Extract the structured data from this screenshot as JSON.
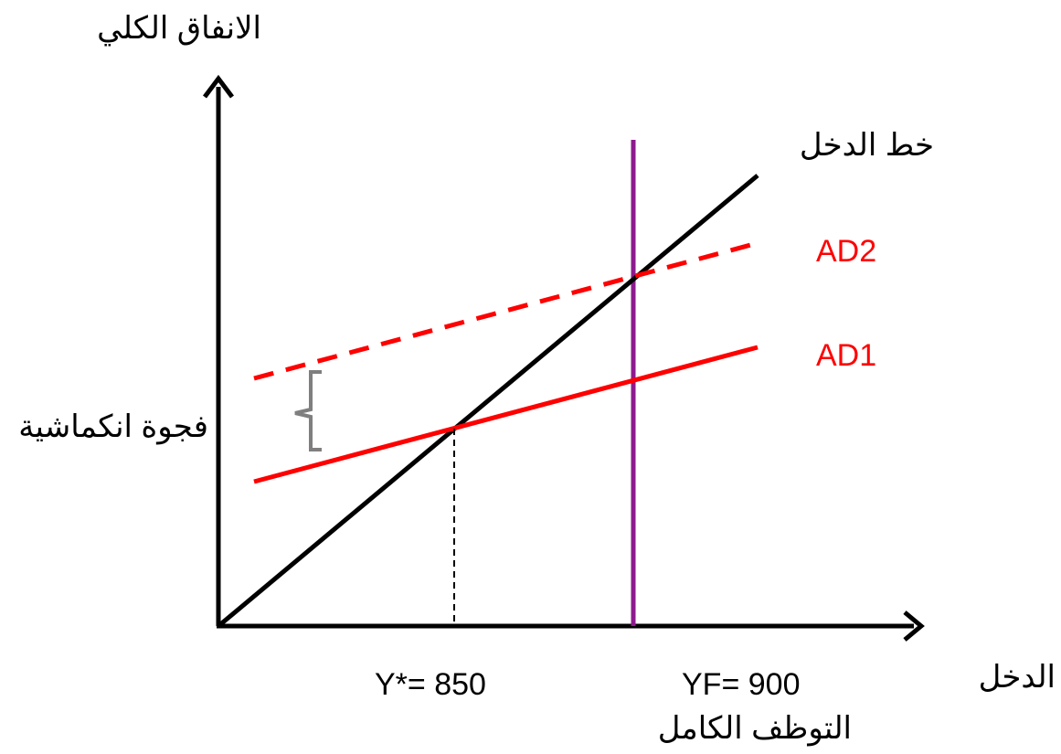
{
  "labels": {
    "y_axis": "الانفاق الكلي",
    "x_axis": "الدخل",
    "income_line": "خط الدخل",
    "ad2": "AD2",
    "ad1": "AD1",
    "gap": "فجوة انكماشية",
    "equilibrium": "Y*= 850",
    "full_employment": "YF= 900",
    "full_employment_caption": "التوظف الكامل"
  },
  "colors": {
    "axes": "#000000",
    "income_line": "#000000",
    "ad": "#ff0000",
    "full_employment_line": "#8e1a8e",
    "gap_bracket": "#7f7f7f",
    "ad_labels": "#ff0000"
  }
}
